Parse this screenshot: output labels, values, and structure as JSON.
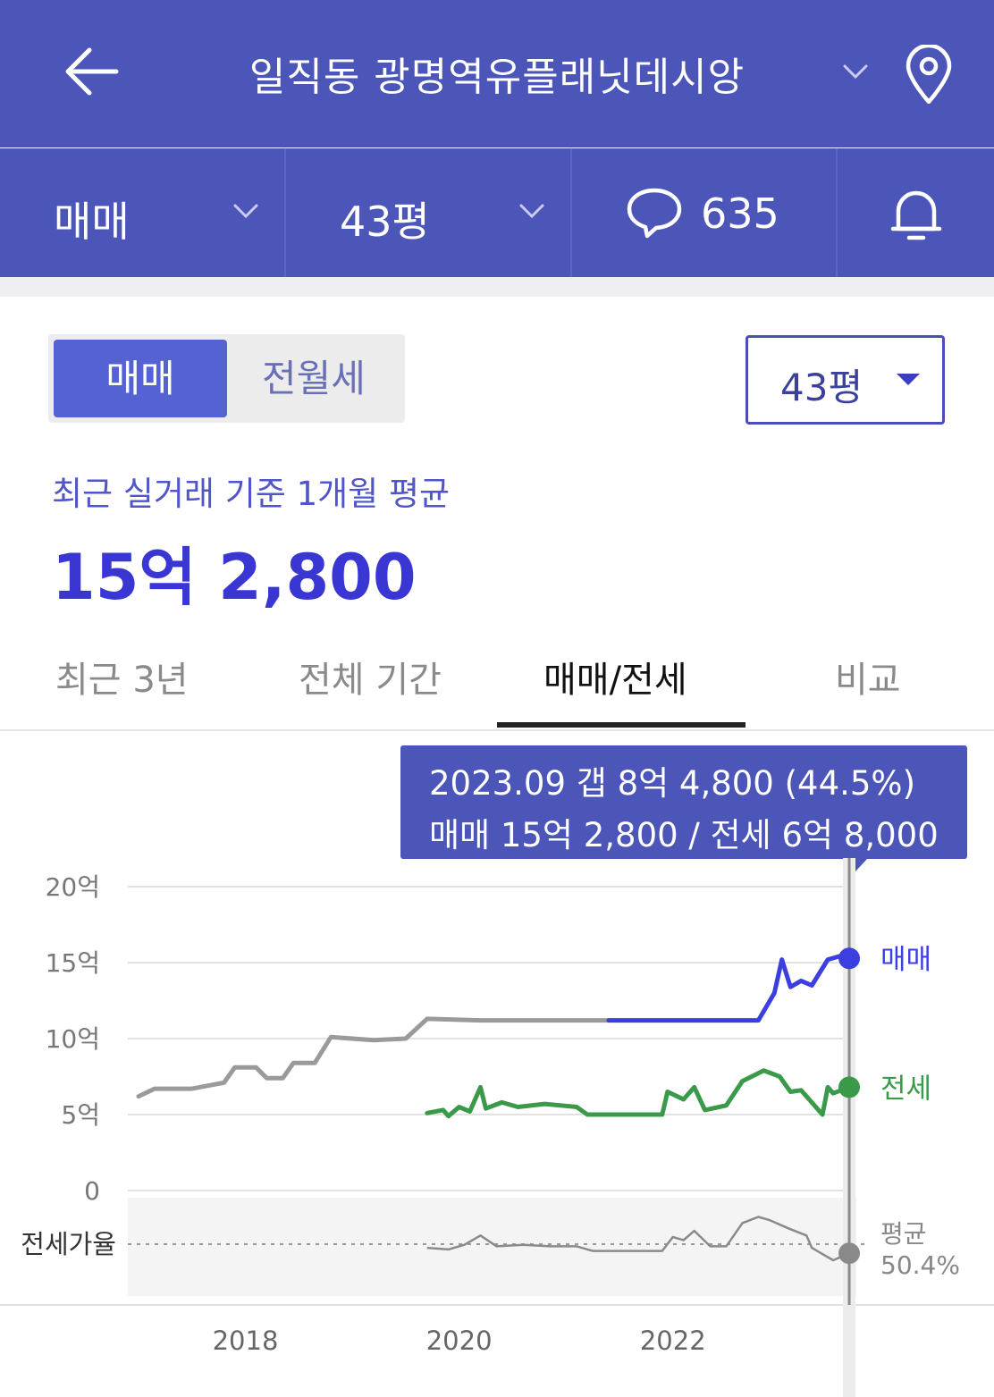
{
  "header": {
    "title": "일직동 광명역유플래닛데시앙",
    "back_icon": "arrow-left-icon",
    "dropdown_icon": "chevron-down-icon",
    "location_icon": "map-pin-icon"
  },
  "subbar": {
    "trade_type": "매매",
    "size": "43평",
    "comment_count": "635",
    "comment_icon": "speech-bubble-icon",
    "bell_icon": "bell-icon"
  },
  "toggle": {
    "selected": "매매",
    "other": "전월세"
  },
  "size_select": {
    "value": "43평"
  },
  "summary": {
    "caption": "최근 실거래 기준 1개월 평균",
    "price": "15억 2,800"
  },
  "tabs": [
    {
      "label": "최근 3년",
      "active": false
    },
    {
      "label": "전체 기간",
      "active": false
    },
    {
      "label": "매매/전세",
      "active": true
    },
    {
      "label": "비교",
      "active": false
    }
  ],
  "tooltip": {
    "line1": "2023.09  갭 8억 4,800 (44.5%)",
    "line2": "매매 15억 2,800 / 전세 6억 8,000"
  },
  "colors": {
    "header_bg": "#4c55b8",
    "accent": "#3a36d4",
    "sale_line": "#3b3fe0",
    "jeonse_line": "#3a9a4a",
    "history_line": "#9a9a9a"
  },
  "chart_data": {
    "type": "line",
    "x_tick_labels": [
      "2018",
      "2020",
      "2022"
    ],
    "y_tick_labels": [
      "20억",
      "15억",
      "10억",
      "5억",
      "0"
    ],
    "ylim": [
      0,
      20
    ],
    "y_unit": "억",
    "ratio_label": "전세가율",
    "ratio_avg_label": "평균",
    "ratio_avg_value": "50.4%",
    "series": [
      {
        "name": "매매",
        "color": "#3b3fe0",
        "points": [
          [
            2017.1,
            6.2
          ],
          [
            2017.25,
            6.7
          ],
          [
            2017.6,
            6.7
          ],
          [
            2017.9,
            7.1
          ],
          [
            2018.0,
            8.1
          ],
          [
            2018.2,
            8.1
          ],
          [
            2018.3,
            7.4
          ],
          [
            2018.45,
            7.4
          ],
          [
            2018.55,
            8.4
          ],
          [
            2018.75,
            8.4
          ],
          [
            2018.9,
            10.1
          ],
          [
            2019.3,
            9.9
          ],
          [
            2019.6,
            10.0
          ],
          [
            2019.8,
            11.3
          ],
          [
            2020.3,
            11.2
          ],
          [
            2021.0,
            11.2
          ],
          [
            2021.5,
            11.2
          ],
          [
            2021.9,
            11.2
          ],
          [
            2022.3,
            11.2
          ],
          [
            2022.9,
            11.2
          ],
          [
            2023.05,
            13.0
          ],
          [
            2023.12,
            15.2
          ],
          [
            2023.2,
            13.4
          ],
          [
            2023.3,
            13.8
          ],
          [
            2023.4,
            13.5
          ],
          [
            2023.55,
            15.2
          ],
          [
            2023.7,
            15.5
          ],
          [
            2023.75,
            15.28
          ]
        ]
      },
      {
        "name": "전세",
        "color": "#3a9a4a",
        "points": [
          [
            2019.8,
            5.1
          ],
          [
            2019.95,
            5.3
          ],
          [
            2020.0,
            4.9
          ],
          [
            2020.1,
            5.5
          ],
          [
            2020.2,
            5.2
          ],
          [
            2020.3,
            6.8
          ],
          [
            2020.35,
            5.4
          ],
          [
            2020.5,
            5.8
          ],
          [
            2020.65,
            5.5
          ],
          [
            2020.9,
            5.7
          ],
          [
            2021.2,
            5.5
          ],
          [
            2021.3,
            5.0
          ],
          [
            2021.8,
            5.0
          ],
          [
            2022.0,
            5.0
          ],
          [
            2022.05,
            6.5
          ],
          [
            2022.2,
            6.0
          ],
          [
            2022.3,
            6.8
          ],
          [
            2022.4,
            5.3
          ],
          [
            2022.6,
            5.6
          ],
          [
            2022.75,
            7.2
          ],
          [
            2022.95,
            7.9
          ],
          [
            2023.1,
            7.5
          ],
          [
            2023.2,
            6.5
          ],
          [
            2023.3,
            6.6
          ],
          [
            2023.5,
            5.0
          ],
          [
            2023.55,
            6.8
          ],
          [
            2023.6,
            6.4
          ],
          [
            2023.75,
            6.8
          ]
        ]
      },
      {
        "name": "전세가율",
        "color": "#9a9a9a",
        "points": [
          [
            2019.8,
            48
          ],
          [
            2020.0,
            47
          ],
          [
            2020.15,
            50
          ],
          [
            2020.3,
            56
          ],
          [
            2020.45,
            49
          ],
          [
            2020.7,
            50
          ],
          [
            2020.95,
            49
          ],
          [
            2021.2,
            49
          ],
          [
            2021.35,
            46
          ],
          [
            2021.7,
            46
          ],
          [
            2022.0,
            46
          ],
          [
            2022.1,
            55
          ],
          [
            2022.2,
            53
          ],
          [
            2022.3,
            59
          ],
          [
            2022.45,
            49
          ],
          [
            2022.6,
            49
          ],
          [
            2022.75,
            64
          ],
          [
            2022.9,
            68
          ],
          [
            2023.0,
            66
          ],
          [
            2023.2,
            60
          ],
          [
            2023.35,
            56
          ],
          [
            2023.4,
            48
          ],
          [
            2023.5,
            44
          ],
          [
            2023.6,
            40
          ],
          [
            2023.75,
            44.5
          ]
        ]
      }
    ]
  }
}
